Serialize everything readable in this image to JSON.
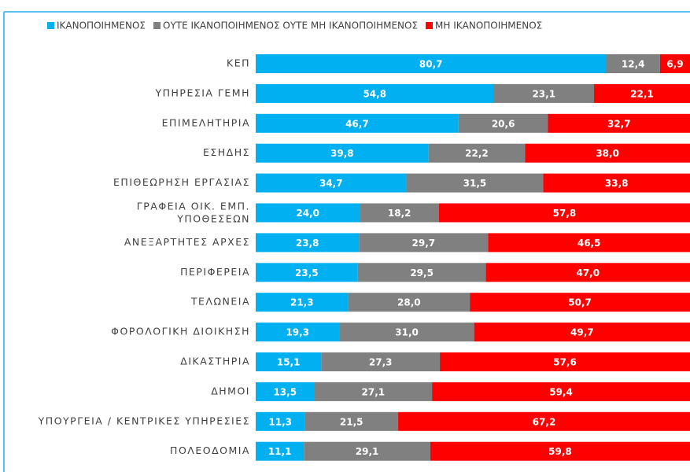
{
  "chart_data": {
    "type": "bar",
    "orientation": "horizontal",
    "stacked": true,
    "categories": [
      "ΚΕΠ",
      "ΥΠΗΡΕΣΙΑ ΓΕΜΗ",
      "ΕΠΙΜΕΛΗΤΗΡΙΑ",
      "ΕΣΗΔΗΣ",
      "ΕΠΙΘΕΩΡΗΣΗ ΕΡΓΑΣΙΑΣ",
      "ΓΡΑΦΕΙΑ ΟΙΚ. ΕΜΠ.\nΥΠΟΘΕΣΕΩΝ",
      "ΑΝΕΞΑΡΤΗΤΕΣ ΑΡΧΕΣ",
      "ΠΕΡΙΦΕΡΕΙΑ",
      "ΤΕΛΩΝΕΙΑ",
      "ΦΟΡΟΛΟΓΙΚΗ ΔΙΟΙΚΗΣΗ",
      "ΔΙΚΑΣΤΗΡΙΑ",
      "ΔΗΜΟΙ",
      "ΥΠΟΥΡΓΕΙΑ / ΚΕΝΤΡΙΚΕΣ ΥΠΗΡΕΣΙΕΣ",
      "ΠΟΛΕΟΔΟΜΙΑ"
    ],
    "series": [
      {
        "name": "ΙΚΑΝΟΠΟΙΗΜΕΝΟΣ",
        "color": "#00b0f0",
        "values": [
          80.7,
          54.8,
          46.7,
          39.8,
          34.7,
          24.0,
          23.8,
          23.5,
          21.3,
          19.3,
          15.1,
          13.5,
          11.3,
          11.1
        ],
        "value_labels": [
          "80,7",
          "54,8",
          "46,7",
          "39,8",
          "34,7",
          "24,0",
          "23,8",
          "23,5",
          "21,3",
          "19,3",
          "15,1",
          "13,5",
          "11,3",
          "11,1"
        ]
      },
      {
        "name": "ΟΥΤΕ ΙΚΑΝΟΠΟΙΗΜΕΝΟΣ ΟΥΤΕ ΜΗ ΙΚΑΝΟΠΟΙΗΜΕΝΟΣ",
        "color": "#808080",
        "values": [
          12.4,
          23.1,
          20.6,
          22.2,
          31.5,
          18.2,
          29.7,
          29.5,
          28.0,
          31.0,
          27.3,
          27.1,
          21.5,
          29.1
        ],
        "value_labels": [
          "12,4",
          "23,1",
          "20,6",
          "22,2",
          "31,5",
          "18,2",
          "29,7",
          "29,5",
          "28,0",
          "31,0",
          "27,3",
          "27,1",
          "21,5",
          "29,1"
        ]
      },
      {
        "name": "ΜΗ ΙΚΑΝΟΠΟΙΗΜΕΝΟΣ",
        "color": "#ff0000",
        "values": [
          6.9,
          22.1,
          32.7,
          38.0,
          33.8,
          57.8,
          46.5,
          47.0,
          50.7,
          49.7,
          57.6,
          59.4,
          67.2,
          59.8
        ],
        "value_labels": [
          "6,9",
          "22,1",
          "32,7",
          "38,0",
          "33,8",
          "57,8",
          "46,5",
          "47,0",
          "50,7",
          "49,7",
          "57,6",
          "59,4",
          "67,2",
          "59,8"
        ]
      }
    ],
    "xlim": [
      0,
      100
    ],
    "legend": "top"
  }
}
